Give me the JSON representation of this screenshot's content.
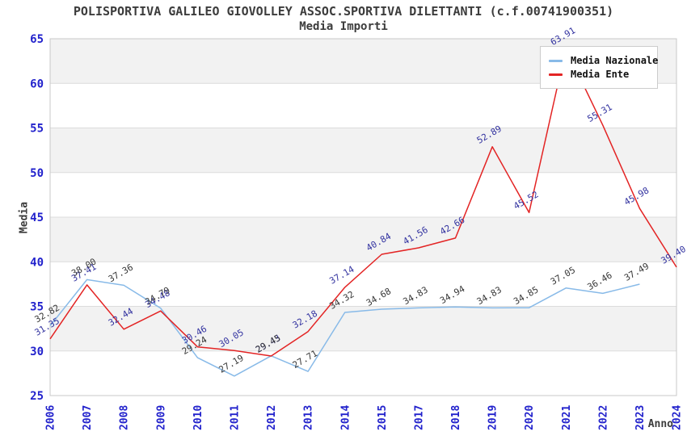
{
  "header": {
    "title": "POLISPORTIVA GALILEO GIOVOLLEY ASSOC.SPORTIVA DILETTANTI (c.f.00741900351)",
    "subtitle": "Media Importi"
  },
  "chart_data": {
    "type": "line",
    "title": "POLISPORTIVA GALILEO GIOVOLLEY ASSOC.SPORTIVA DILETTANTI (c.f.00741900351)",
    "subtitle": "Media Importi",
    "xlabel": "Anno",
    "ylabel": "Media",
    "ylim": [
      25,
      65
    ],
    "ytick_step": 5,
    "grid": "horizontal-alternating-bands",
    "legend_position": "top-right",
    "band_gray": "#f2f2f2",
    "gridline_color": "#dcdcdc",
    "plot_border_color": "#c8c8c8",
    "axis_tick_color": "#2222cc",
    "categories": [
      "2006",
      "2007",
      "2008",
      "2009",
      "2010",
      "2011",
      "2012",
      "2013",
      "2014",
      "2015",
      "2017",
      "2018",
      "2019",
      "2020",
      "2021",
      "2022",
      "2023",
      "2024"
    ],
    "series": [
      {
        "name": "Media Nazionale",
        "color": "#88bae8",
        "label_color": "#383838",
        "values": [
          32.82,
          38.0,
          37.36,
          34.79,
          29.24,
          27.19,
          29.45,
          27.71,
          34.32,
          34.68,
          34.83,
          34.94,
          34.83,
          34.85,
          37.05,
          36.46,
          37.49,
          null
        ]
      },
      {
        "name": "Media Ente",
        "color": "#e32424",
        "label_color": "#3333a0",
        "values": [
          31.35,
          37.41,
          32.44,
          34.48,
          30.46,
          30.05,
          29.43,
          32.18,
          37.14,
          40.84,
          41.56,
          42.66,
          52.89,
          45.52,
          63.91,
          55.31,
          45.98,
          39.4
        ]
      }
    ]
  }
}
